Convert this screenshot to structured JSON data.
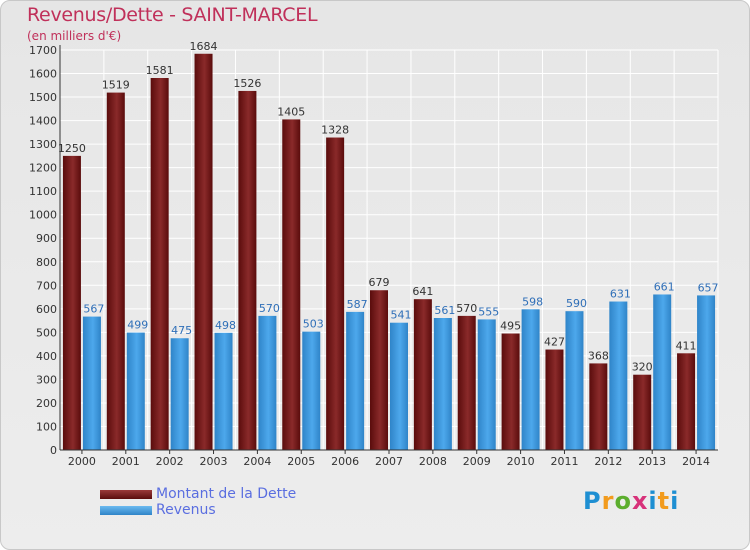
{
  "chart_data": {
    "type": "bar",
    "title": "Revenus/Dette - SAINT-MARCEL",
    "subtitle": "(en milliers d'€)",
    "categories": [
      "2000",
      "2001",
      "2002",
      "2003",
      "2004",
      "2005",
      "2006",
      "2007",
      "2008",
      "2009",
      "2010",
      "2011",
      "2012",
      "2013",
      "2014"
    ],
    "series": [
      {
        "name": "Montant de la Dette",
        "color": "#7a1a1a",
        "values": [
          1250,
          1519,
          1581,
          1684,
          1526,
          1405,
          1328,
          679,
          641,
          570,
          495,
          427,
          368,
          320,
          411
        ]
      },
      {
        "name": "Revenus",
        "color": "#3f9be0",
        "values": [
          567,
          499,
          475,
          498,
          570,
          503,
          587,
          541,
          561,
          555,
          598,
          590,
          631,
          661,
          657
        ]
      }
    ],
    "ylim": [
      0,
      1700
    ],
    "yticks": [
      0,
      100,
      200,
      300,
      400,
      500,
      600,
      700,
      800,
      900,
      1000,
      1100,
      1200,
      1300,
      1400,
      1500,
      1600,
      1700
    ],
    "grid": true,
    "legend_position": "bottom-left"
  },
  "logo": {
    "text": "Proxiti"
  }
}
